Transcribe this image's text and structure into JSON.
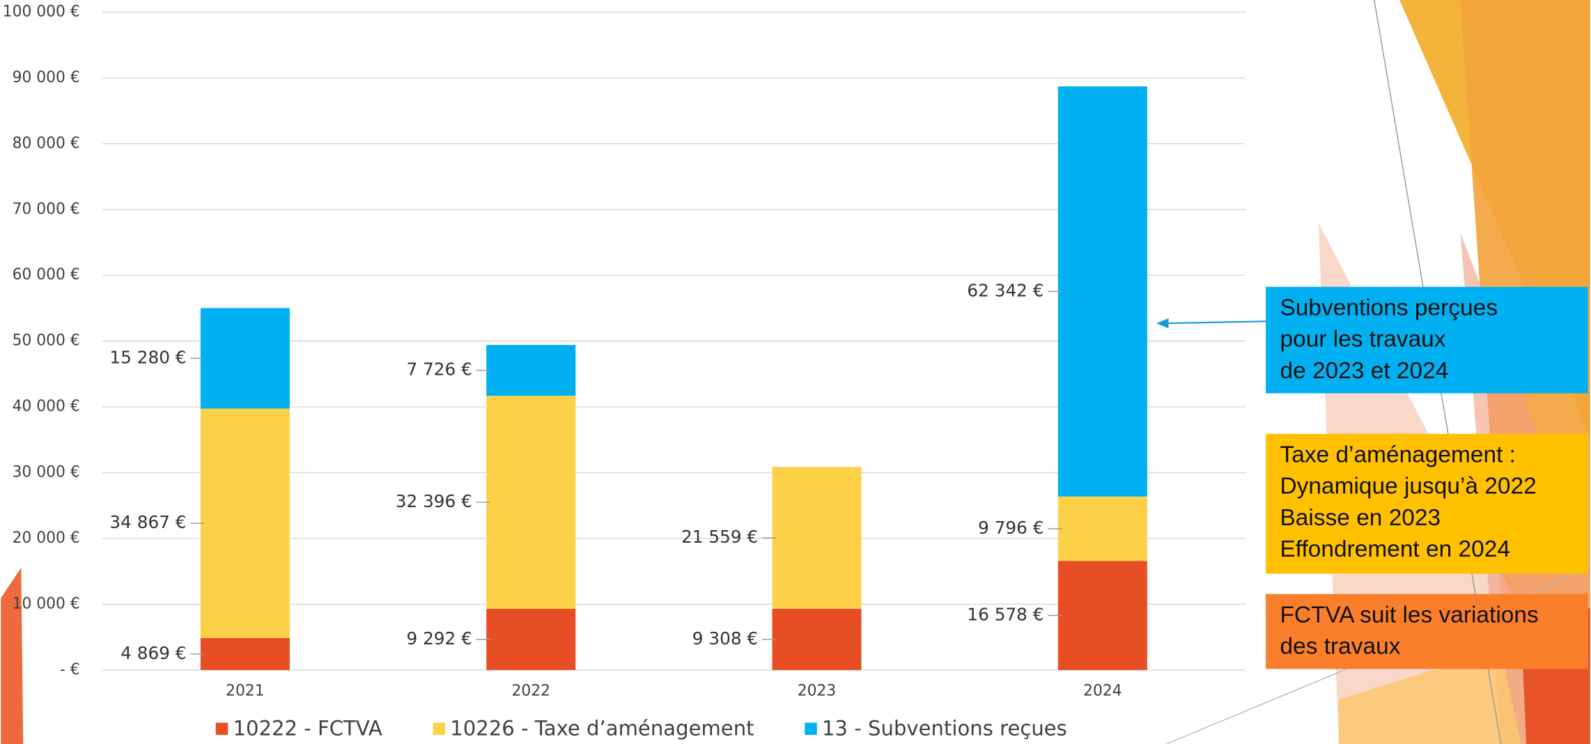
{
  "chart_data": {
    "type": "bar",
    "stacked": true,
    "categories": [
      "2021",
      "2022",
      "2023",
      "2024"
    ],
    "series": [
      {
        "name": "10222 - FCTVA",
        "color": "#e84e24",
        "values": [
          4869,
          9292,
          9308,
          16578
        ],
        "value_labels": [
          "4 869 €",
          "9 292 €",
          "9 308 €",
          "16 578 €"
        ]
      },
      {
        "name": "10226 - Taxe d’aménagement",
        "color": "#fdd147",
        "values": [
          34867,
          32396,
          21559,
          9796
        ],
        "value_labels": [
          "34 867 €",
          "32 396 €",
          "21 559 €",
          "9 796 €"
        ]
      },
      {
        "name": "13 - Subventions reçues",
        "color": "#00b0f0",
        "values": [
          15280,
          7726,
          null,
          62342
        ],
        "value_labels": [
          "15 280 €",
          "7 726 €",
          null,
          "62 342 €"
        ]
      }
    ],
    "ylim": [
      0,
      100000
    ],
    "yticks": [
      {
        "value": 0,
        "label": "-   €"
      },
      {
        "value": 10000,
        "label": "10 000 €"
      },
      {
        "value": 20000,
        "label": "20 000 €"
      },
      {
        "value": 30000,
        "label": "30 000 €"
      },
      {
        "value": 40000,
        "label": "40 000 €"
      },
      {
        "value": 50000,
        "label": "50 000 €"
      },
      {
        "value": 60000,
        "label": "60 000 €"
      },
      {
        "value": 70000,
        "label": "70 000 €"
      },
      {
        "value": 80000,
        "label": "80 000 €"
      },
      {
        "value": 90000,
        "label": "90 000 €"
      },
      {
        "value": 100000,
        "label": "100 000 €"
      }
    ],
    "grid": true,
    "legend": "bottom",
    "annotations": [
      {
        "lines": [
          "Subventions perçues",
          "pour les travaux",
          "de 2023 et 2024"
        ],
        "color": "#00b0f0"
      },
      {
        "lines": [
          "Taxe d’aménagement :",
          "Dynamique jusqu’à 2022",
          "Baisse en 2023",
          "Effondrement en 2024"
        ],
        "color": "#ffc000"
      },
      {
        "lines": [
          "FCTVA suit les variations",
          "des travaux"
        ],
        "color": "#fb7f2b"
      }
    ]
  }
}
